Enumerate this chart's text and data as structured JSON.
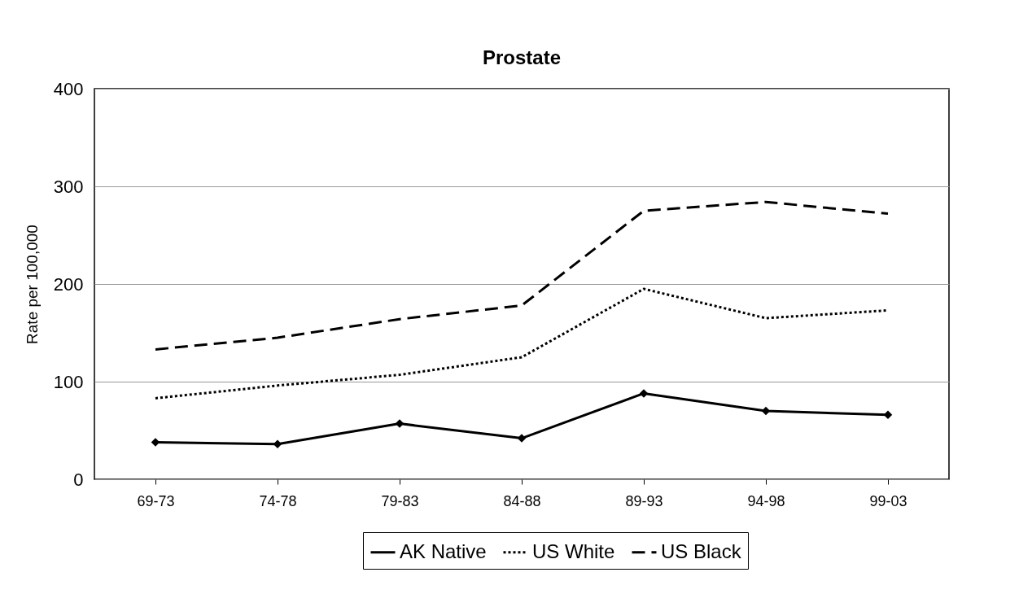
{
  "chart_data": {
    "type": "line",
    "title": "Prostate",
    "ylabel": "Rate per 100,000",
    "categories": [
      "69-73",
      "74-78",
      "79-83",
      "84-88",
      "89-93",
      "94-98",
      "99-03"
    ],
    "series": [
      {
        "name": "AK Native",
        "color": "#000000",
        "marker": "diamond",
        "line_style": "solid",
        "values": [
          38,
          36,
          57,
          42,
          88,
          70,
          66
        ]
      },
      {
        "name": "US White",
        "color": "#000000",
        "marker": "none",
        "line_style": "dotted",
        "values": [
          83,
          96,
          107,
          125,
          195,
          165,
          173
        ]
      },
      {
        "name": "US Black",
        "color": "#000000",
        "marker": "none",
        "line_style": "dashed",
        "values": [
          133,
          145,
          164,
          178,
          275,
          284,
          272
        ]
      }
    ],
    "ylim": [
      0,
      400
    ],
    "yticks": [
      0,
      100,
      200,
      300,
      400
    ],
    "grid": "y",
    "legend": "bottom"
  }
}
